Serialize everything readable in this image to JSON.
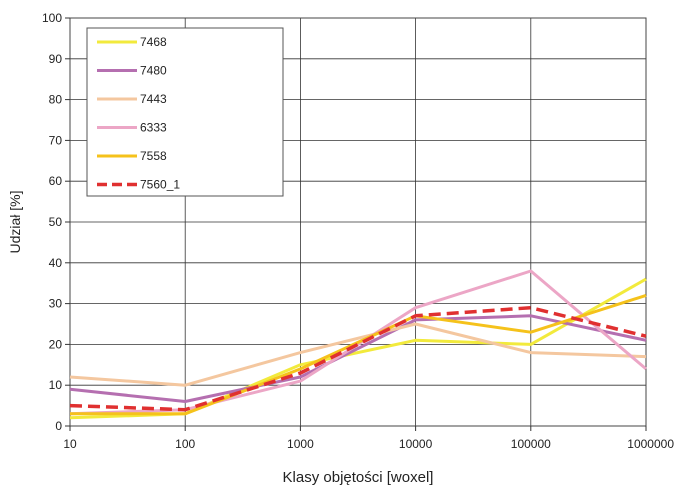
{
  "chart_data": {
    "type": "line",
    "xlabel": "Klasy objętości [woxel]",
    "ylabel": "Udział [%]",
    "x_scale": "log",
    "x_ticks": [
      "10",
      "100",
      "1000",
      "10000",
      "100000",
      "1000000"
    ],
    "x": [
      10,
      100,
      1000,
      10000,
      100000,
      1000000
    ],
    "ylim": [
      0,
      100
    ],
    "y_ticks": [
      "0",
      "10",
      "20",
      "30",
      "40",
      "50",
      "60",
      "70",
      "80",
      "90",
      "100"
    ],
    "grid": true,
    "legend_position": "top-left",
    "series": [
      {
        "name": "7468",
        "color": "#f2ea3c",
        "dash": false,
        "values": [
          2,
          3,
          15,
          21,
          20,
          36
        ]
      },
      {
        "name": "7480",
        "color": "#b56fb0",
        "dash": false,
        "values": [
          9,
          6,
          12,
          26,
          27,
          21
        ]
      },
      {
        "name": "7443",
        "color": "#f4c79f",
        "dash": false,
        "values": [
          12,
          10,
          18,
          25,
          18,
          17
        ]
      },
      {
        "name": "6333",
        "color": "#eca6c6",
        "dash": false,
        "values": [
          3,
          4,
          11,
          29,
          38,
          14
        ]
      },
      {
        "name": "7558",
        "color": "#f5c21b",
        "dash": false,
        "values": [
          3,
          3,
          14,
          27,
          23,
          32
        ]
      },
      {
        "name": "7560_1",
        "color": "#e03030",
        "dash": true,
        "values": [
          5,
          4,
          13,
          27,
          29,
          22
        ]
      }
    ]
  }
}
